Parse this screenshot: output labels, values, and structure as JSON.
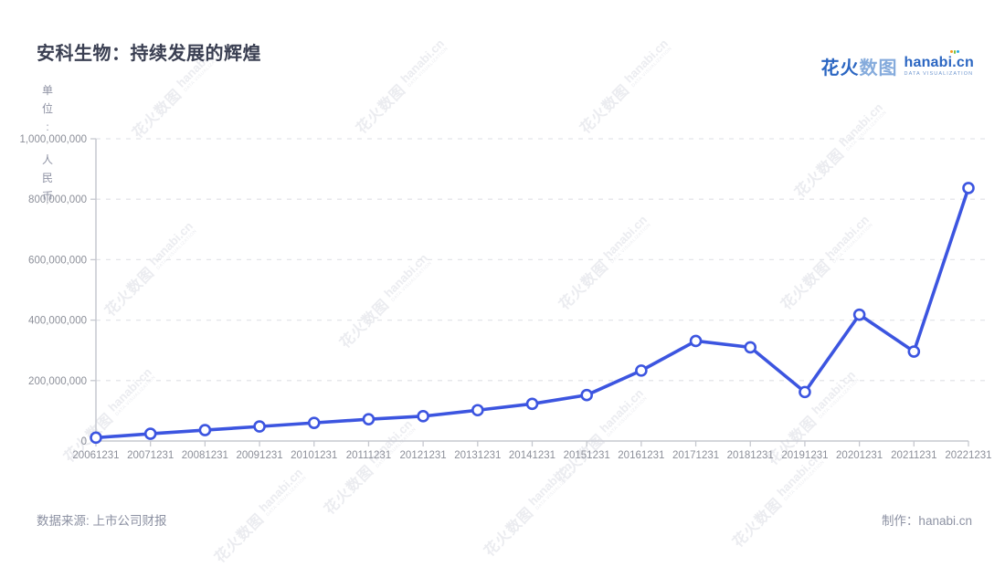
{
  "header": {
    "title": "安科生物：持续发展的辉煌",
    "logo": {
      "brand_cn_bold": "花火",
      "brand_cn_light": "数图",
      "brand_en": "hanabi.cn",
      "brand_sub": "DATA VISUALIZATION"
    }
  },
  "footer": {
    "source": "数据来源: 上市公司财报",
    "credit": "制作：hanabi.cn"
  },
  "watermark": {
    "text_cn": "花火数图",
    "text_en": "hanabi.cn",
    "text_sub": "DATA VISUALIZATION"
  },
  "colors": {
    "line_blue": "#3c55e0",
    "logo_blue": "#2b66c2",
    "axis_gray": "#c6c8cf",
    "grid_gray": "#e4e5e9",
    "tick_text_gray": "#8c8f99"
  },
  "chart_data": {
    "type": "line",
    "title": "安科生物：持续发展的辉煌",
    "unit_label": "单位:人民币",
    "x": [
      "20061231",
      "20071231",
      "20081231",
      "20091231",
      "20101231",
      "20111231",
      "20121231",
      "20131231",
      "20141231",
      "20151231",
      "20161231",
      "20171231",
      "20181231",
      "20191231",
      "20201231",
      "20211231",
      "20221231"
    ],
    "values": [
      11000000,
      24000000,
      36000000,
      48000000,
      60000000,
      72000000,
      82000000,
      102000000,
      123000000,
      152000000,
      233000000,
      331000000,
      310000000,
      162000000,
      418000000,
      296000000,
      837000000
    ],
    "xlabel": "",
    "ylabel": "单位:人民币",
    "ylim": [
      0,
      1000000000
    ],
    "y_ticks": [
      0,
      200000000,
      400000000,
      600000000,
      800000000,
      1000000000
    ],
    "y_tick_labels": [
      "0",
      "200,000,000",
      "400,000,000",
      "600,000,000",
      "800,000,000",
      "1,000,000,000"
    ],
    "grid": "horizontal-dashed",
    "legend": "none",
    "line_color": "#3c55e0",
    "marker": "open-circle"
  }
}
